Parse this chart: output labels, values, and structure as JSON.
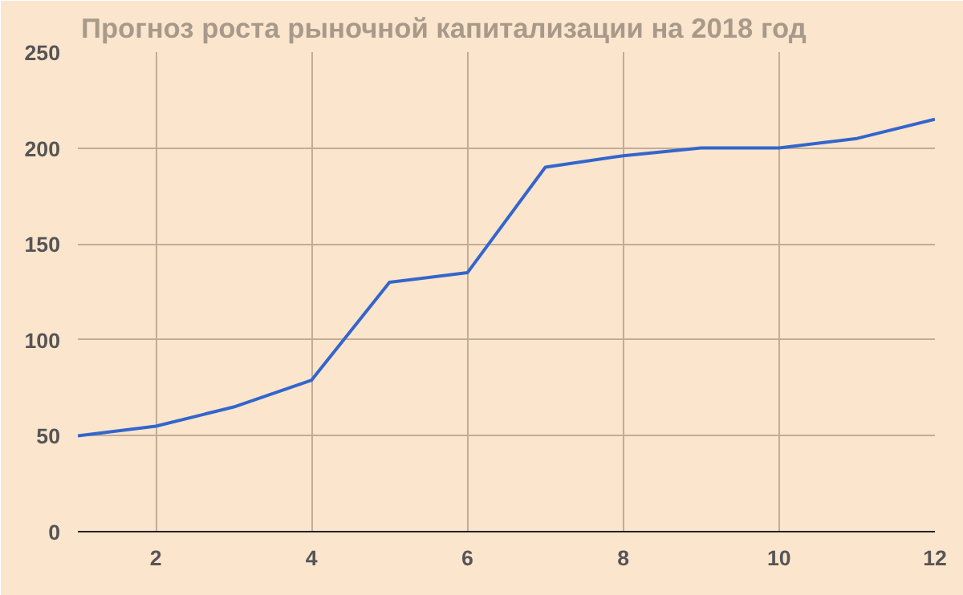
{
  "chart_data": {
    "type": "line",
    "title": "Прогноз роста рыночной капитализации на 2018 год",
    "x": [
      1,
      2,
      3,
      4,
      5,
      6,
      7,
      8,
      9,
      10,
      11,
      12
    ],
    "series": [
      {
        "color": "#3366cc",
        "values": [
          50,
          55,
          65,
          79,
          130,
          135,
          190,
          196,
          200,
          200,
          205,
          215
        ]
      }
    ],
    "xlim": [
      1,
      12
    ],
    "xticks": [
      2,
      4,
      6,
      8,
      10,
      12
    ],
    "ylim": [
      0,
      250
    ],
    "yticks": [
      0,
      50,
      100,
      150,
      200,
      250
    ],
    "grid": true,
    "marker": "none",
    "line_style": "solid"
  }
}
